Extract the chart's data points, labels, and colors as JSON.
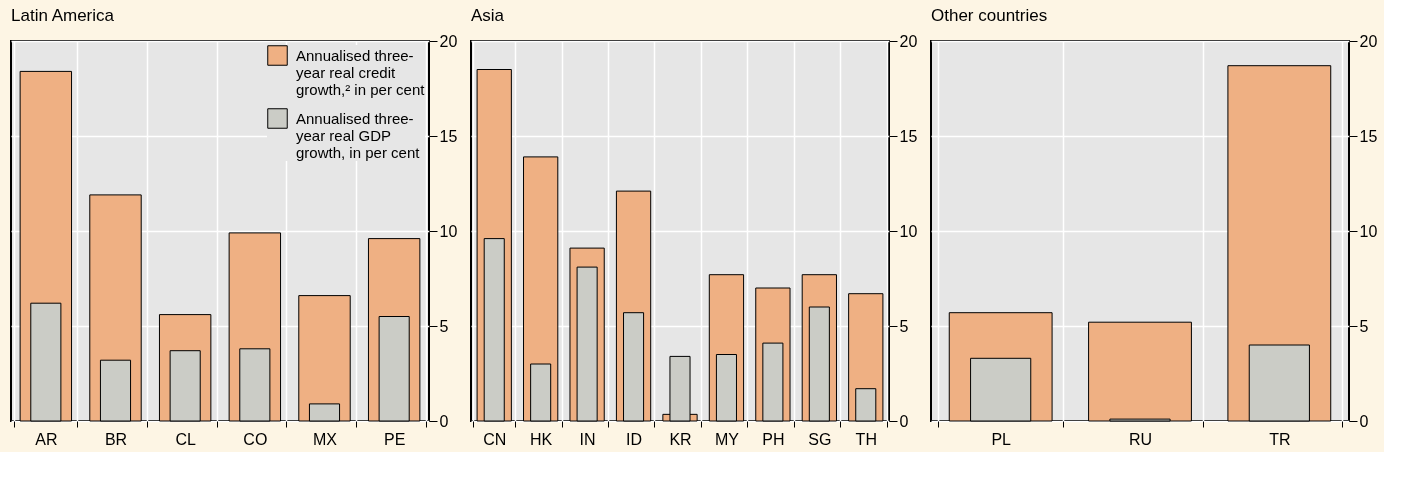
{
  "chart_data": [
    {
      "type": "bar",
      "title": "Latin America",
      "categories": [
        "AR",
        "BR",
        "CL",
        "CO",
        "MX",
        "PE"
      ],
      "series": [
        {
          "name": "Annualised three-year real credit growth,² in per cent",
          "color": "#efb083",
          "values": [
            18.4,
            11.9,
            5.6,
            9.9,
            6.6,
            9.6
          ]
        },
        {
          "name": "Annualised three-year real GDP growth, in per cent",
          "color": "#cbccc6",
          "values": [
            6.2,
            3.2,
            3.7,
            3.8,
            0.9,
            5.5
          ]
        }
      ],
      "ylim": [
        0,
        20
      ],
      "yticks": [
        0,
        5,
        10,
        15,
        20
      ],
      "grid": true,
      "legend": "top right"
    },
    {
      "type": "bar",
      "title": "Asia",
      "categories": [
        "CN",
        "HK",
        "IN",
        "ID",
        "KR",
        "MY",
        "PH",
        "SG",
        "TH"
      ],
      "series": [
        {
          "color": "#efb083",
          "values": [
            18.5,
            13.9,
            9.1,
            12.1,
            0.35,
            7.7,
            7.0,
            7.7,
            6.7
          ]
        },
        {
          "color": "#cbccc6",
          "values": [
            9.6,
            3.0,
            8.1,
            5.7,
            3.4,
            3.5,
            4.1,
            6.0,
            1.7
          ]
        }
      ],
      "ylim": [
        0,
        20
      ],
      "yticks": [
        0,
        5,
        10,
        15,
        20
      ],
      "grid": true
    },
    {
      "type": "bar",
      "title": "Other countries",
      "categories": [
        "PL",
        "RU",
        "TR"
      ],
      "series": [
        {
          "color": "#efb083",
          "values": [
            5.7,
            5.2,
            18.7
          ]
        },
        {
          "color": "#cbccc6",
          "values": [
            3.3,
            0.1,
            4.0
          ]
        }
      ],
      "ylim": [
        0,
        20
      ],
      "yticks": [
        0,
        5,
        10,
        15,
        20
      ],
      "grid": true
    }
  ]
}
